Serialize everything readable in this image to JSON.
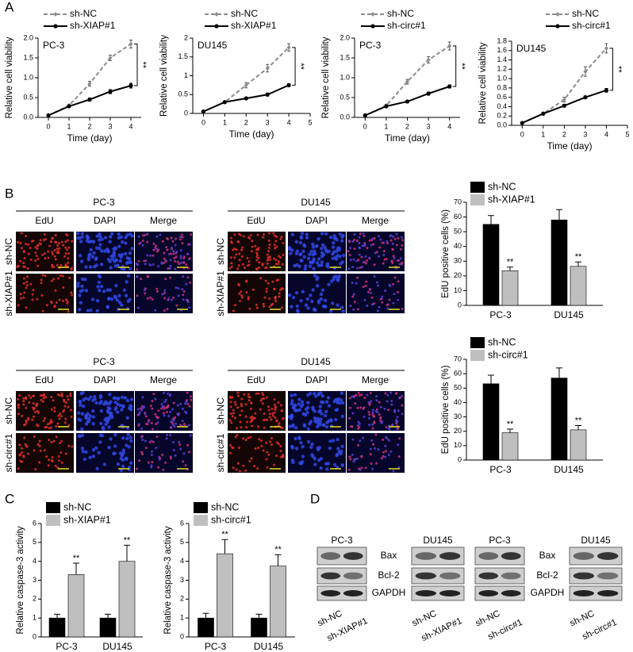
{
  "panel_labels": [
    "A",
    "B",
    "C",
    "D"
  ],
  "chart_data": [
    {
      "type": "line",
      "title": "PC-3",
      "xlabel": "Time (day)",
      "ylabel": "Relative cell viability",
      "significance": "**",
      "x": [
        0,
        1,
        2,
        3,
        4
      ],
      "xlim": [
        -0.5,
        4.5
      ],
      "xticks": [
        0,
        1,
        2,
        3,
        4
      ],
      "ylim": [
        0,
        2
      ],
      "yticks": [
        {
          "value": 0,
          "label": "0.0"
        },
        0.5,
        {
          "value": 1,
          "label": "1.0"
        },
        1.5,
        {
          "value": 2,
          "label": "2.0"
        }
      ],
      "series": [
        {
          "name": "sh-NC",
          "color": "#8c8c8c",
          "values": [
            0.05,
            0.3,
            0.85,
            1.5,
            1.85
          ],
          "errors": [
            0.01,
            0.03,
            0.06,
            0.07,
            0.1
          ]
        },
        {
          "name": "sh-XIAP#1",
          "color": "#000000",
          "values": [
            0.05,
            0.28,
            0.45,
            0.65,
            0.8
          ],
          "errors": [
            0.01,
            0.02,
            0.04,
            0.05,
            0.06
          ]
        }
      ]
    },
    {
      "type": "line",
      "title": "DU145",
      "xlabel": "Time (day)",
      "ylabel": "Relative cell viability",
      "significance": "**",
      "x": [
        0,
        1,
        2,
        3,
        4
      ],
      "xlim": [
        -0.5,
        5
      ],
      "xticks": [
        0,
        1,
        2,
        3,
        4,
        5
      ],
      "ylim": [
        0,
        2
      ],
      "yticks": [
        0,
        0.5,
        1,
        1.5,
        2
      ],
      "series": [
        {
          "name": "sh-NC",
          "color": "#8c8c8c",
          "values": [
            0.05,
            0.3,
            0.75,
            1.2,
            1.75
          ],
          "errors": [
            0.01,
            0.03,
            0.07,
            0.1,
            0.1
          ]
        },
        {
          "name": "sh-XIAP#1",
          "color": "#000000",
          "values": [
            0.05,
            0.3,
            0.4,
            0.5,
            0.75
          ],
          "errors": [
            0.01,
            0.02,
            0.03,
            0.04,
            0.04
          ]
        }
      ]
    },
    {
      "type": "line",
      "title": "PC-3",
      "xlabel": "Time (day)",
      "ylabel": "Relative cell viability",
      "significance": "**",
      "x": [
        0,
        1,
        2,
        3,
        4
      ],
      "xlim": [
        -0.5,
        4.5
      ],
      "xticks": [
        0,
        1,
        2,
        3,
        4
      ],
      "ylim": [
        0,
        2
      ],
      "yticks": [
        {
          "value": 0,
          "label": "0.0"
        },
        0.5,
        {
          "value": 1,
          "label": "1.0"
        },
        1.5,
        {
          "value": 2,
          "label": "2.0"
        }
      ],
      "series": [
        {
          "name": "sh-NC",
          "color": "#8c8c8c",
          "values": [
            0.05,
            0.3,
            0.9,
            1.45,
            1.8
          ],
          "errors": [
            0.01,
            0.03,
            0.06,
            0.08,
            0.1
          ]
        },
        {
          "name": "sh-circ#1",
          "color": "#000000",
          "values": [
            0.05,
            0.28,
            0.4,
            0.6,
            0.78
          ],
          "errors": [
            0.01,
            0.02,
            0.03,
            0.04,
            0.04
          ]
        }
      ]
    },
    {
      "type": "line",
      "title": "DU145",
      "xlabel": "Time (day)",
      "ylabel": "Relative cell viability",
      "significance": "**",
      "x": [
        0,
        1,
        2,
        3,
        4
      ],
      "xlim": [
        -0.5,
        5
      ],
      "xticks": [
        0,
        1,
        2,
        3,
        4,
        5
      ],
      "ylim": [
        0,
        1.8
      ],
      "yticks": [
        {
          "value": 0,
          "label": "0.0"
        },
        0.2,
        0.4,
        0.6,
        0.8,
        {
          "value": 1,
          "label": "1.0"
        },
        1.2,
        1.4,
        1.6,
        1.8
      ],
      "series": [
        {
          "name": "sh-NC",
          "color": "#8c8c8c",
          "values": [
            0.05,
            0.25,
            0.55,
            1.15,
            1.65
          ],
          "errors": [
            0.01,
            0.03,
            0.05,
            0.1,
            0.1
          ]
        },
        {
          "name": "sh-circ#1",
          "color": "#000000",
          "values": [
            0.05,
            0.25,
            0.42,
            0.6,
            0.75
          ],
          "errors": [
            0.01,
            0.02,
            0.03,
            0.03,
            0.04
          ]
        }
      ]
    },
    {
      "type": "bar",
      "ylabel": "EdU positive cells (%)",
      "significance": "**",
      "categories": [
        "PC-3",
        "DU145"
      ],
      "ylim": [
        0,
        70
      ],
      "yticks": [
        0,
        10,
        20,
        30,
        40,
        50,
        60,
        70
      ],
      "series": [
        {
          "name": "sh-NC",
          "color": "#000000",
          "values": [
            55,
            58
          ],
          "errors": [
            6,
            7
          ]
        },
        {
          "name": "sh-XIAP#1",
          "color": "#bfbfbf",
          "values": [
            23.5,
            26.5
          ],
          "errors": [
            2.5,
            3
          ]
        }
      ]
    },
    {
      "type": "bar",
      "ylabel": "EdU positive cells (%)",
      "significance": "**",
      "categories": [
        "PC-3",
        "DU145"
      ],
      "ylim": [
        0,
        70
      ],
      "yticks": [
        0,
        10,
        20,
        30,
        40,
        50,
        60,
        70
      ],
      "series": [
        {
          "name": "sh-NC",
          "color": "#000000",
          "values": [
            53,
            57
          ],
          "errors": [
            6,
            7
          ]
        },
        {
          "name": "sh-circ#1",
          "color": "#bfbfbf",
          "values": [
            19,
            21
          ],
          "errors": [
            2.5,
            3
          ]
        }
      ]
    },
    {
      "type": "bar",
      "ylabel": "Relative caspase-3 activity",
      "significance": "**",
      "categories": [
        "PC-3",
        "DU145"
      ],
      "ylim": [
        0,
        6
      ],
      "yticks": [
        0,
        1,
        2,
        3,
        4,
        5,
        6
      ],
      "series": [
        {
          "name": "sh-NC",
          "color": "#000000",
          "values": [
            1,
            1
          ],
          "errors": [
            0.2,
            0.2
          ]
        },
        {
          "name": "sh-XIAP#1",
          "color": "#bfbfbf",
          "values": [
            3.3,
            4
          ],
          "errors": [
            0.6,
            0.85
          ]
        }
      ]
    },
    {
      "type": "bar",
      "ylabel": "Relative caspase-3 activity",
      "significance": "**",
      "categories": [
        "PC-3",
        "DU145"
      ],
      "ylim": [
        0,
        6
      ],
      "yticks": [
        0,
        1,
        2,
        3,
        4,
        5,
        6
      ],
      "series": [
        {
          "name": "sh-NC",
          "color": "#000000",
          "values": [
            1,
            1
          ],
          "errors": [
            0.25,
            0.2
          ]
        },
        {
          "name": "sh-circ#1",
          "color": "#bfbfbf",
          "values": [
            4.4,
            3.75
          ],
          "errors": [
            0.75,
            0.6
          ]
        }
      ]
    }
  ],
  "microscopy": [
    {
      "title": "PC-3",
      "columns": [
        "EdU",
        "DAPI",
        "Merge"
      ],
      "rows": [
        "sh-NC",
        "sh-XIAP#1"
      ]
    },
    {
      "title": "DU145",
      "columns": [
        "EdU",
        "DAPI",
        "Merge"
      ],
      "rows": [
        "sh-NC",
        "sh-XIAP#1"
      ]
    },
    {
      "title": "PC-3",
      "columns": [
        "EdU",
        "DAPI",
        "Merge"
      ],
      "rows": [
        "sh-NC",
        "sh-circ#1"
      ]
    },
    {
      "title": "DU145",
      "columns": [
        "EdU",
        "DAPI",
        "Merge"
      ],
      "rows": [
        "sh-NC",
        "sh-circ#1"
      ]
    }
  ],
  "western_blot": {
    "bands": [
      "Bax",
      "Bcl-2",
      "GAPDH"
    ],
    "blots": [
      {
        "title": "PC-3",
        "lanes": [
          "sh-NC",
          "sh-XIAP#1"
        ]
      },
      {
        "title": "DU145",
        "lanes": [
          "sh-NC",
          "sh-XIAP#1"
        ]
      },
      {
        "title": "PC-3",
        "lanes": [
          "sh-NC",
          "sh-circ#1"
        ]
      },
      {
        "title": "DU145",
        "lanes": [
          "sh-NC",
          "sh-circ#1"
        ]
      }
    ]
  }
}
